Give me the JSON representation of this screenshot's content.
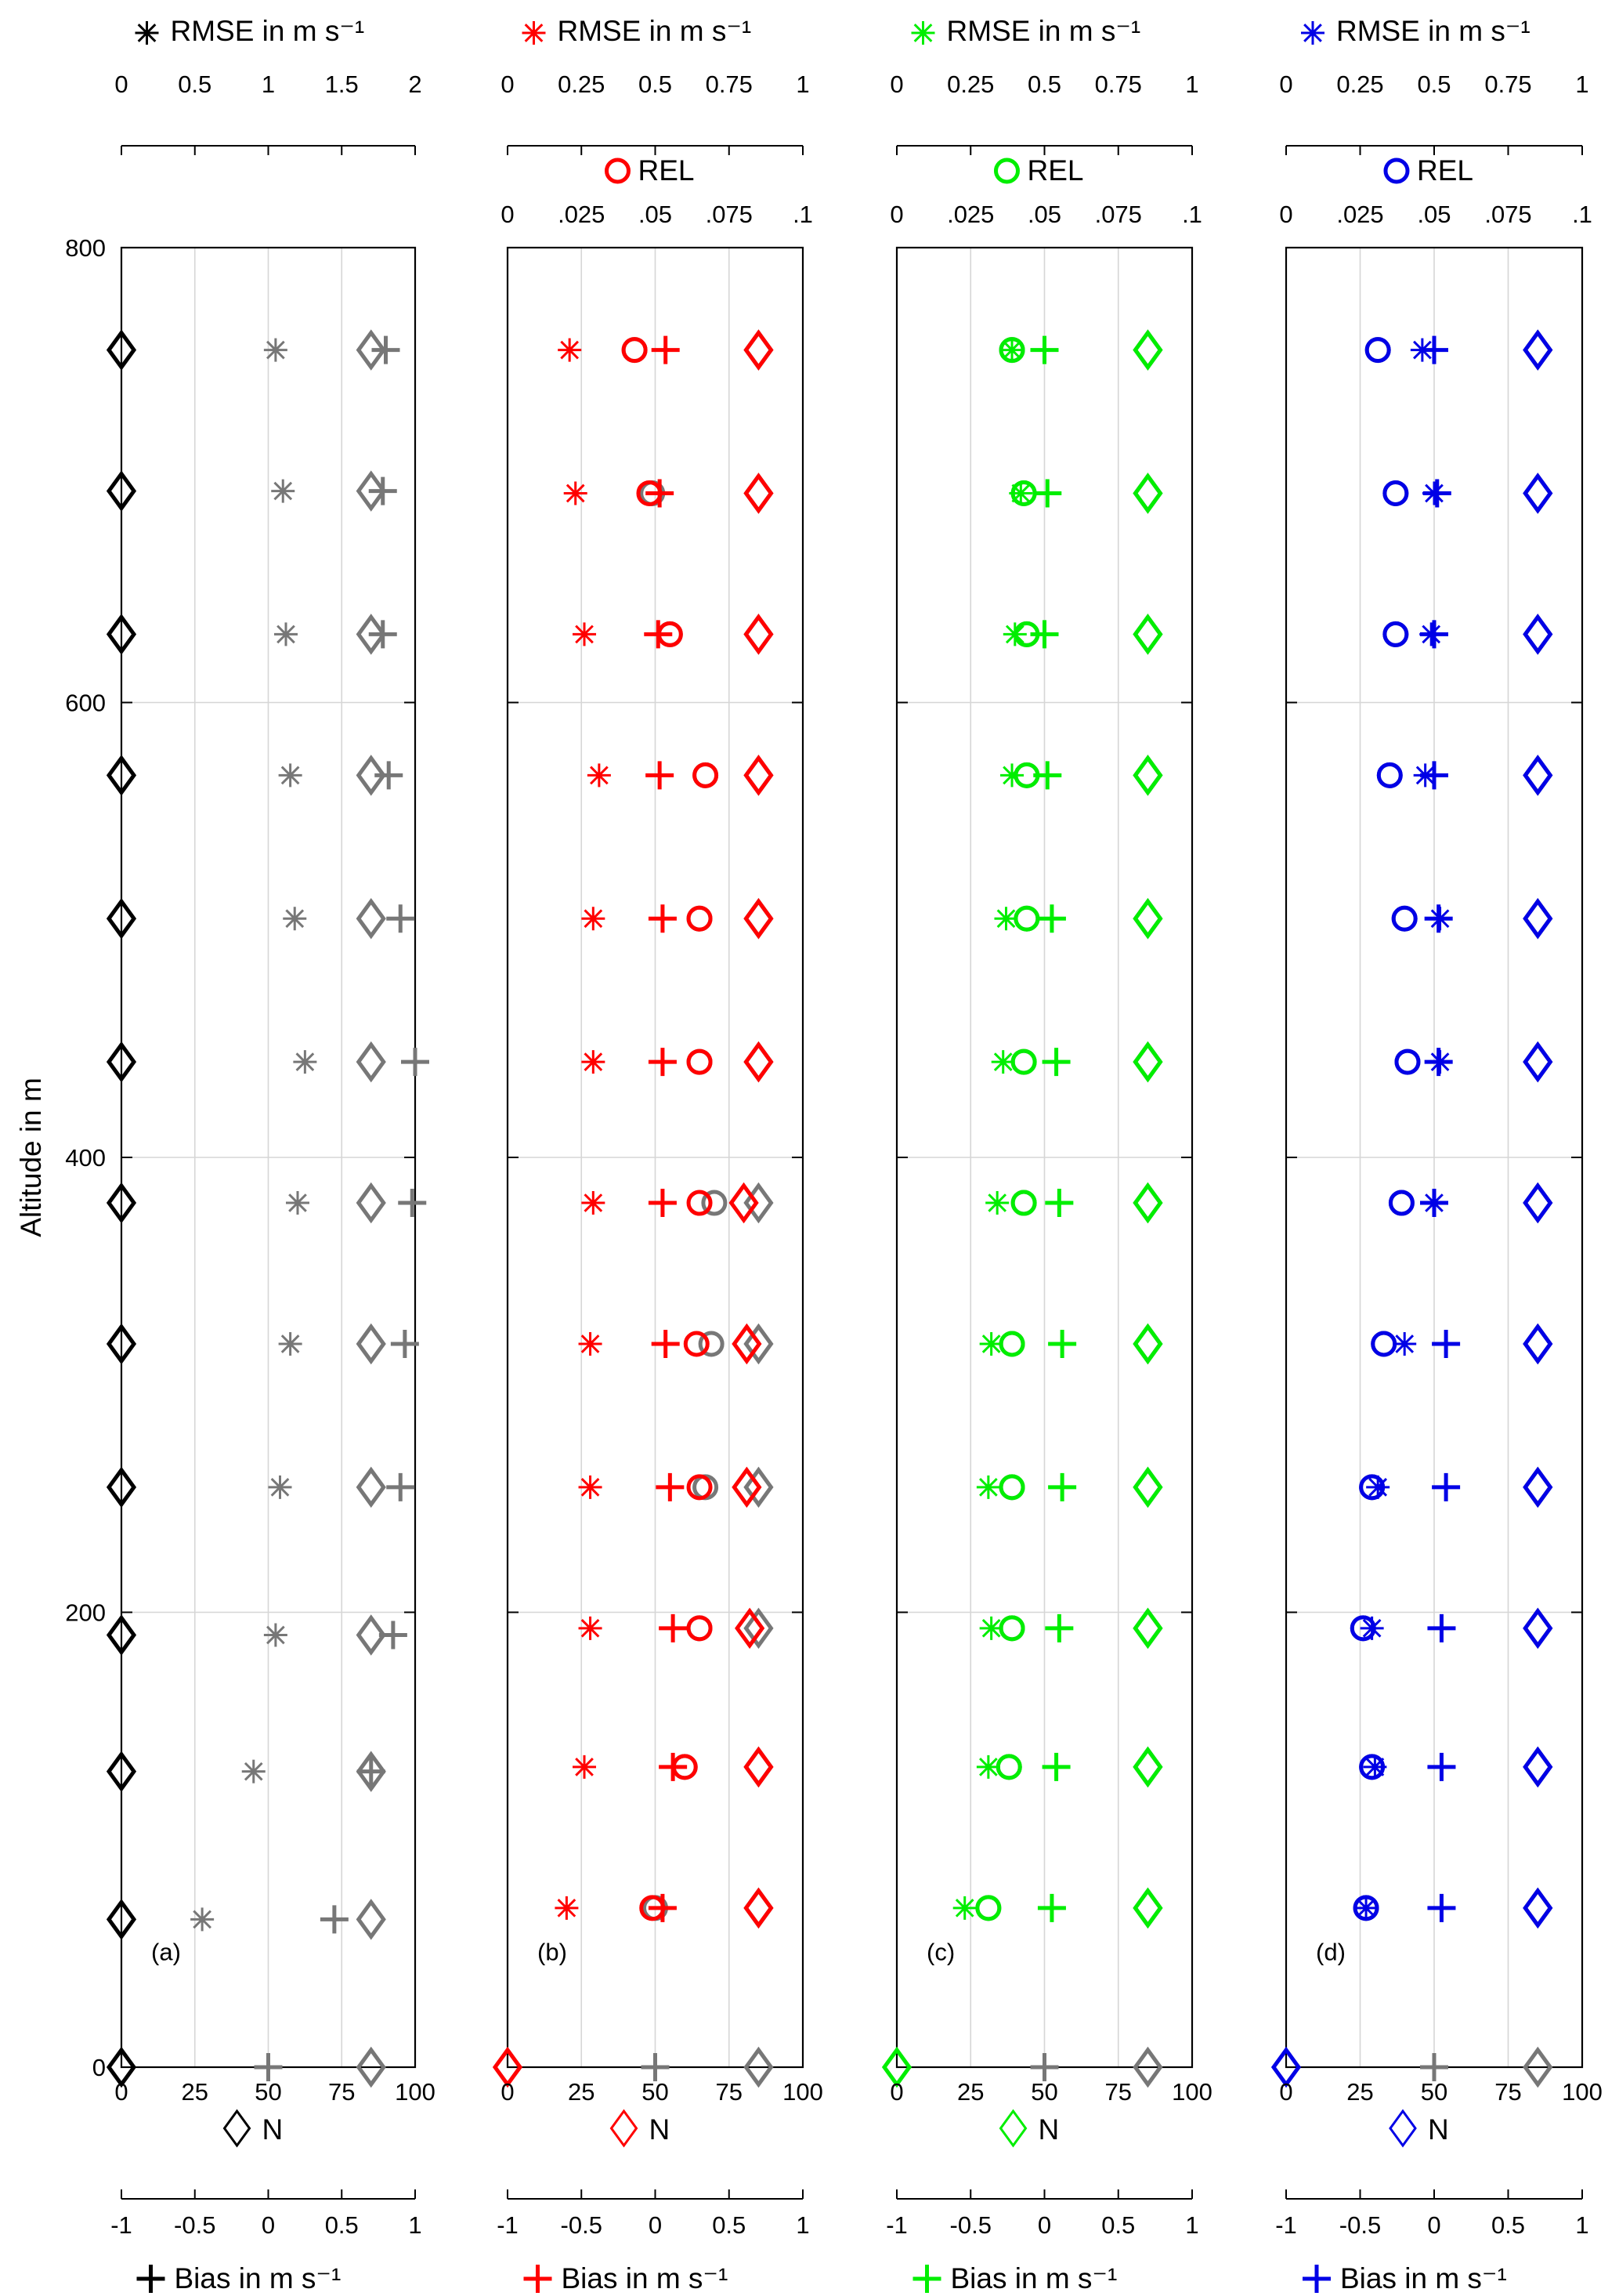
{
  "y_axis": {
    "label": "Altitude in m",
    "ticks": [
      "0",
      "200",
      "400",
      "600",
      "800"
    ]
  },
  "colors": {
    "a": "#000000",
    "b": "#ff0000",
    "c": "#00ee00",
    "d": "#0000e6",
    "ref": "#777777"
  },
  "panels": [
    {
      "id": "a",
      "tag": "(a)",
      "color": "#000000",
      "top_rmse_label": "RMSE in m s⁻¹",
      "top_rmse_ticks": [
        "0",
        "0.5",
        "1",
        "1.5",
        "2"
      ],
      "rel_label": "",
      "rel_ticks": [],
      "n_label": "N",
      "n_ticks": [
        "0",
        "25",
        "50",
        "75",
        "100"
      ],
      "bias_label": "Bias in m s⁻¹",
      "bias_ticks": [
        "-1",
        "-0.5",
        "0",
        "0.5",
        "1"
      ]
    },
    {
      "id": "b",
      "tag": "(b)",
      "color": "#ff0000",
      "top_rmse_label": "RMSE in m s⁻¹",
      "top_rmse_ticks": [
        "0",
        "0.25",
        "0.5",
        "0.75",
        "1"
      ],
      "rel_label": "REL",
      "rel_ticks": [
        "0",
        ".025",
        ".05",
        ".075",
        ".1"
      ],
      "n_label": "N",
      "n_ticks": [
        "0",
        "25",
        "50",
        "75",
        "100"
      ],
      "bias_label": "Bias in m s⁻¹",
      "bias_ticks": [
        "-1",
        "-0.5",
        "0",
        "0.5",
        "1"
      ]
    },
    {
      "id": "c",
      "tag": "(c)",
      "color": "#00ee00",
      "top_rmse_label": "RMSE in m s⁻¹",
      "top_rmse_ticks": [
        "0",
        "0.25",
        "0.5",
        "0.75",
        "1"
      ],
      "rel_label": "REL",
      "rel_ticks": [
        "0",
        ".025",
        ".05",
        ".075",
        ".1"
      ],
      "n_label": "N",
      "n_ticks": [
        "0",
        "25",
        "50",
        "75",
        "100"
      ],
      "bias_label": "Bias in m s⁻¹",
      "bias_ticks": [
        "-1",
        "-0.5",
        "0",
        "0.5",
        "1"
      ]
    },
    {
      "id": "d",
      "tag": "(d)",
      "color": "#0000e6",
      "top_rmse_label": "RMSE in m s⁻¹",
      "top_rmse_ticks": [
        "0",
        "0.25",
        "0.5",
        "0.75",
        "1"
      ],
      "rel_label": "REL",
      "rel_ticks": [
        "0",
        ".025",
        ".05",
        ".075",
        ".1"
      ],
      "n_label": "N",
      "n_ticks": [
        "0",
        "25",
        "50",
        "75",
        "100"
      ],
      "bias_label": "Bias in m s⁻¹",
      "bias_ticks": [
        "-1",
        "-0.5",
        "0",
        "0.5",
        "1"
      ]
    }
  ],
  "chart_data": {
    "type": "scatter",
    "subplots": 4,
    "ylim": [
      0,
      800
    ],
    "y_label": "Altitude in m",
    "n_axis": {
      "label": "N",
      "lim": [
        0,
        100
      ]
    },
    "bias_axis": {
      "label": "Bias in m s⁻¹",
      "lim": [
        -1,
        1
      ]
    },
    "rmse_axis": {
      "label": "RMSE in m s⁻¹",
      "lim_a": [
        0,
        2
      ],
      "lim_bcd": [
        0,
        1
      ]
    },
    "rel_axis": {
      "label": "REL",
      "lim": [
        0,
        0.1
      ]
    },
    "grid": true,
    "reference_series_color": "#777777",
    "panels": [
      {
        "id": "a",
        "reference": {
          "heights": [
            0,
            65,
            130,
            190,
            255,
            318,
            380,
            442,
            505,
            568,
            630,
            693,
            755
          ],
          "N": [
            85,
            85,
            85,
            85,
            85,
            85,
            85,
            85,
            85,
            85,
            85,
            85,
            85
          ],
          "bias": [
            0,
            0.45,
            0.7,
            0.85,
            0.9,
            0.93,
            0.98,
            1.0,
            0.9,
            0.82,
            0.78,
            0.78,
            0.8
          ],
          "rmse": [
            null,
            0.55,
            0.9,
            1.05,
            1.08,
            1.15,
            1.2,
            1.25,
            1.18,
            1.15,
            1.12,
            1.1,
            1.05
          ]
        },
        "series": {
          "heights": [
            0,
            65,
            130,
            190,
            255,
            318,
            380,
            442,
            505,
            568,
            630,
            693,
            755
          ],
          "N": [
            0,
            0,
            0,
            0,
            0,
            0,
            0,
            0,
            0,
            0,
            0,
            0,
            0
          ]
        }
      },
      {
        "id": "b",
        "reference": {
          "heights": [
            0,
            70,
            132,
            193,
            255,
            318,
            380,
            442,
            505,
            568,
            630,
            692,
            755
          ],
          "N": [
            85,
            85,
            85,
            85,
            85,
            85,
            85,
            85,
            85,
            85,
            85,
            85,
            85
          ],
          "REL": [
            null,
            0.05,
            0.06,
            0.065,
            0.067,
            0.069,
            0.07,
            0.065,
            0.065,
            0.067,
            0.055,
            0.049,
            0.043
          ]
        },
        "series": {
          "heights": [
            0,
            70,
            132,
            193,
            255,
            318,
            380,
            442,
            505,
            568,
            630,
            692,
            755
          ],
          "N": [
            0,
            85,
            85,
            82,
            81,
            81,
            80,
            85,
            85,
            85,
            85,
            85,
            85
          ],
          "bias": [
            null,
            0.05,
            0.12,
            0.12,
            0.1,
            0.07,
            0.05,
            0.05,
            0.05,
            0.03,
            0.02,
            0.03,
            0.07
          ],
          "rmse": [
            null,
            0.2,
            0.26,
            0.28,
            0.28,
            0.28,
            0.29,
            0.29,
            0.29,
            0.31,
            0.26,
            0.23,
            0.21
          ],
          "REL": [
            null,
            0.049,
            0.06,
            0.065,
            0.065,
            0.064,
            0.065,
            0.065,
            0.065,
            0.067,
            0.055,
            0.048,
            0.043
          ]
        }
      },
      {
        "id": "c",
        "reference": {
          "heights": [
            0,
            70,
            132,
            193,
            255,
            318,
            380,
            442,
            505,
            568,
            630,
            692,
            755
          ],
          "N": [
            85,
            85,
            85,
            85,
            85,
            85,
            85,
            85,
            85,
            85,
            85,
            85,
            85
          ],
          "REL": [
            null,
            0.031,
            0.038,
            0.039,
            0.039,
            0.039,
            0.043,
            0.043,
            0.044,
            0.044,
            0.044,
            0.043,
            0.039
          ]
        },
        "series": {
          "heights": [
            0,
            70,
            132,
            193,
            255,
            318,
            380,
            442,
            505,
            568,
            630,
            692,
            755
          ],
          "N": [
            0,
            85,
            85,
            85,
            85,
            85,
            85,
            85,
            85,
            85,
            85,
            85,
            85
          ],
          "bias": [
            null,
            0.05,
            0.08,
            0.1,
            0.12,
            0.12,
            0.1,
            0.08,
            0.05,
            0.02,
            0.0,
            0.02,
            0.0
          ],
          "rmse": [
            null,
            0.23,
            0.31,
            0.32,
            0.31,
            0.32,
            0.34,
            0.36,
            0.37,
            0.39,
            0.4,
            0.42,
            0.39
          ],
          "REL": [
            null,
            0.031,
            0.038,
            0.039,
            0.039,
            0.039,
            0.043,
            0.043,
            0.044,
            0.044,
            0.044,
            0.043,
            0.039
          ]
        }
      },
      {
        "id": "d",
        "reference": {
          "heights": [
            0,
            70,
            132,
            193,
            255,
            318,
            380,
            442,
            505,
            568,
            630,
            692,
            755
          ],
          "N": [
            85,
            85,
            85,
            85,
            85,
            85,
            85,
            85,
            85,
            85,
            85,
            85,
            85
          ],
          "REL": [
            null,
            0.027,
            0.029,
            0.026,
            0.029,
            0.033,
            0.039,
            0.041,
            0.04,
            0.035,
            0.037,
            0.037,
            0.031
          ]
        },
        "series": {
          "heights": [
            0,
            70,
            132,
            193,
            255,
            318,
            380,
            442,
            505,
            568,
            630,
            692,
            755
          ],
          "N": [
            0,
            85,
            85,
            85,
            85,
            85,
            85,
            85,
            85,
            85,
            85,
            85,
            85
          ],
          "bias": [
            null,
            0.05,
            0.05,
            0.05,
            0.08,
            0.08,
            0.0,
            0.03,
            0.03,
            0.0,
            0.0,
            0.02,
            0.0
          ],
          "rmse": [
            null,
            0.27,
            0.3,
            0.29,
            0.31,
            0.4,
            0.5,
            0.52,
            0.52,
            0.47,
            0.49,
            0.5,
            0.46
          ],
          "REL": [
            null,
            0.027,
            0.029,
            0.026,
            0.029,
            0.033,
            0.039,
            0.041,
            0.04,
            0.035,
            0.037,
            0.037,
            0.031
          ]
        }
      }
    ]
  }
}
